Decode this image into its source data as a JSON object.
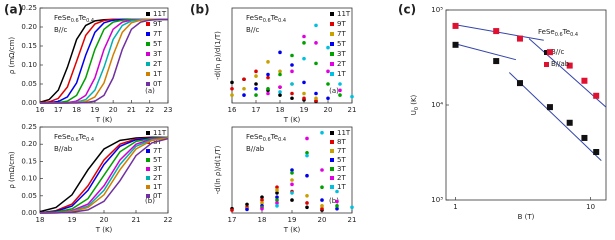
{
  "panel_labels": [
    "(a)",
    "(b)",
    "(c)"
  ],
  "chart_data": [
    {
      "type": "line",
      "title_parts": [
        "FeSe",
        "0.6",
        "Te",
        "0.4"
      ],
      "annotations": [
        "B//c",
        "(a)"
      ],
      "xlabel": "T (K)",
      "ylabel": "ρ (mΩ/cm)",
      "x": [
        16,
        16.5,
        17,
        17.5,
        18,
        18.5,
        19,
        19.5,
        20,
        20.5,
        21,
        21.5,
        22,
        22.5,
        23
      ],
      "xlim": [
        16,
        23
      ],
      "xticks": [
        16,
        17,
        18,
        19,
        20,
        21,
        22,
        23
      ],
      "ylim": [
        0,
        0.25
      ],
      "yticks": [
        {
          "value": 0,
          "label": "0.00"
        },
        {
          "value": 0.05,
          "label": "0.05"
        },
        {
          "value": 0.1,
          "label": "0.10"
        },
        {
          "value": 0.15,
          "label": "0.15"
        },
        {
          "value": 0.2,
          "label": "0.20"
        },
        {
          "value": 0.25,
          "label": "0.25"
        }
      ],
      "legend": "right",
      "series": [
        {
          "name": "11T",
          "color": "#000000",
          "values": [
            0.002,
            0.009,
            0.034,
            0.094,
            0.167,
            0.204,
            0.216,
            0.219,
            0.22,
            0.22,
            0.22,
            0.22,
            0.22,
            0.22,
            0.22
          ]
        },
        {
          "name": "9T",
          "color": "#e00000",
          "values": [
            0.001,
            0.003,
            0.012,
            0.042,
            0.11,
            0.178,
            0.208,
            0.217,
            0.22,
            0.22,
            0.22,
            0.22,
            0.22,
            0.22,
            0.22
          ]
        },
        {
          "name": "7T",
          "color": "#0000ee",
          "values": [
            0,
            0.001,
            0.004,
            0.016,
            0.053,
            0.126,
            0.186,
            0.211,
            0.218,
            0.22,
            0.22,
            0.22,
            0.22,
            0.22,
            0.22
          ]
        },
        {
          "name": "5T",
          "color": "#00a000",
          "values": [
            0,
            0,
            0.001,
            0.005,
            0.02,
            0.066,
            0.141,
            0.194,
            0.213,
            0.218,
            0.22,
            0.22,
            0.22,
            0.22,
            0.22
          ]
        },
        {
          "name": "3T",
          "color": "#d000d0",
          "values": [
            0,
            0,
            0,
            0.001,
            0.005,
            0.02,
            0.066,
            0.141,
            0.194,
            0.213,
            0.218,
            0.22,
            0.22,
            0.22,
            0.22
          ]
        },
        {
          "name": "2T",
          "color": "#00b0b0",
          "values": [
            0,
            0,
            0,
            0,
            0.002,
            0.009,
            0.034,
            0.094,
            0.167,
            0.204,
            0.216,
            0.219,
            0.22,
            0.22,
            0.22
          ]
        },
        {
          "name": "1T",
          "color": "#d08000",
          "values": [
            0,
            0,
            0,
            0,
            0.001,
            0.004,
            0.016,
            0.053,
            0.126,
            0.186,
            0.211,
            0.218,
            0.22,
            0.22,
            0.22
          ]
        },
        {
          "name": "0T",
          "color": "#7030a0",
          "values": [
            0,
            0,
            0,
            0,
            0,
            0.001,
            0.005,
            0.02,
            0.066,
            0.141,
            0.194,
            0.213,
            0.218,
            0.22,
            0.22
          ]
        }
      ]
    },
    {
      "type": "line",
      "title_parts": [
        "FeSe",
        "0.6",
        "Te",
        "0.4"
      ],
      "annotations": [
        "B//ab",
        "(b)"
      ],
      "xlabel": "T (K)",
      "ylabel": "ρ (mΩ/cm)",
      "x": [
        18,
        18.5,
        19,
        19.5,
        20,
        20.5,
        21,
        21.5,
        22
      ],
      "xlim": [
        18,
        22
      ],
      "xticks": [
        18,
        19,
        20,
        21,
        22
      ],
      "ylim": [
        0,
        0.25
      ],
      "yticks": [
        {
          "value": 0,
          "label": "0.00"
        },
        {
          "value": 0.05,
          "label": "0.05"
        },
        {
          "value": 0.1,
          "label": "0.10"
        },
        {
          "value": 0.15,
          "label": "0.15"
        },
        {
          "value": 0.2,
          "label": "0.20"
        },
        {
          "value": 0.25,
          "label": "0.25"
        }
      ],
      "legend": "right",
      "series": [
        {
          "name": "11T",
          "color": "#000000",
          "values": [
            0.004,
            0.016,
            0.053,
            0.126,
            0.186,
            0.211,
            0.218,
            0.22,
            0.22
          ]
        },
        {
          "name": "8T",
          "color": "#e00000",
          "values": [
            0.001,
            0.007,
            0.026,
            0.079,
            0.154,
            0.2,
            0.215,
            0.219,
            0.22
          ]
        },
        {
          "name": "7T",
          "color": "#0000ee",
          "values": [
            0.001,
            0.005,
            0.02,
            0.066,
            0.141,
            0.194,
            0.213,
            0.218,
            0.22
          ]
        },
        {
          "name": "5T",
          "color": "#00a000",
          "values": [
            0.001,
            0.003,
            0.012,
            0.042,
            0.11,
            0.178,
            0.208,
            0.217,
            0.22
          ]
        },
        {
          "name": "3T",
          "color": "#d000d0",
          "values": [
            0,
            0.001,
            0.007,
            0.026,
            0.079,
            0.154,
            0.2,
            0.215,
            0.219
          ]
        },
        {
          "name": "2T",
          "color": "#00b0b0",
          "values": [
            0,
            0.001,
            0.005,
            0.02,
            0.066,
            0.141,
            0.194,
            0.213,
            0.218
          ]
        },
        {
          "name": "1T",
          "color": "#d08000",
          "values": [
            0,
            0.001,
            0.004,
            0.016,
            0.053,
            0.126,
            0.186,
            0.211,
            0.218
          ]
        },
        {
          "name": "0T",
          "color": "#7030a0",
          "values": [
            0,
            0,
            0.002,
            0.009,
            0.034,
            0.094,
            0.167,
            0.204,
            0.216
          ]
        }
      ]
    },
    {
      "type": "scatter",
      "title_parts": [
        "FeSe",
        "0.6",
        "Te",
        "0.4"
      ],
      "annotations": [
        "B//c",
        "(a)"
      ],
      "xlabel": "T (K)",
      "ylabel": "-d(ln ρ)/d(1/T)",
      "x": [
        16,
        16.5,
        17,
        17.5,
        18,
        18.5,
        19,
        19.5,
        20,
        20.5,
        21
      ],
      "xlim": [
        16,
        21
      ],
      "xticks": [
        16,
        17,
        18,
        19,
        20,
        21
      ],
      "ylim": [
        0,
        6000
      ],
      "legend": "right",
      "series": [
        {
          "name": "11T",
          "color": "#000000",
          "values": [
            1300,
            1500,
            1200,
            800,
            500,
            300,
            200,
            100,
            null,
            null,
            null
          ]
        },
        {
          "name": "9T",
          "color": "#e00000",
          "values": [
            900,
            1500,
            2000,
            1600,
            1000,
            600,
            300,
            150,
            null,
            null,
            null
          ]
        },
        {
          "name": "7T",
          "color": "#c8a000",
          "values": [
            500,
            900,
            1700,
            2600,
            2000,
            1200,
            600,
            300,
            null,
            null,
            null
          ]
        },
        {
          "name": "5T",
          "color": "#0000ee",
          "values": [
            null,
            500,
            900,
            1800,
            3200,
            2400,
            1300,
            600,
            300,
            null,
            null
          ]
        },
        {
          "name": "3T",
          "color": "#00a000",
          "values": [
            null,
            null,
            500,
            900,
            1800,
            3000,
            3800,
            2500,
            1200,
            500,
            null
          ]
        },
        {
          "name": "2T",
          "color": "#e000e0",
          "values": [
            null,
            null,
            null,
            600,
            1000,
            2000,
            4200,
            3800,
            2000,
            800,
            null
          ]
        },
        {
          "name": "1T",
          "color": "#00c0e0",
          "values": [
            null,
            null,
            null,
            null,
            700,
            1200,
            2800,
            4900,
            3500,
            1200,
            400
          ]
        }
      ]
    },
    {
      "type": "scatter",
      "title_parts": [
        "FeSe",
        "0.6",
        "Te",
        "0.4"
      ],
      "annotations": [
        "B//ab",
        "(b)"
      ],
      "xlabel": "T (K)",
      "ylabel": "-d(ln ρ)/d(1/T)",
      "x": [
        17,
        17.5,
        18,
        18.5,
        19,
        19.5,
        20,
        20.5,
        21
      ],
      "xlim": [
        17,
        21
      ],
      "xticks": [
        17,
        18,
        19,
        20,
        21
      ],
      "ylim": [
        0,
        6000
      ],
      "legend": "right",
      "series": [
        {
          "name": "11T",
          "color": "#000000",
          "values": [
            300,
            600,
            1100,
            1400,
            900,
            400,
            200,
            null,
            null
          ]
        },
        {
          "name": "8T",
          "color": "#e00000",
          "values": [
            200,
            400,
            900,
            1800,
            1500,
            700,
            300,
            null,
            null
          ]
        },
        {
          "name": "7T",
          "color": "#c8a000",
          "values": [
            null,
            300,
            700,
            1600,
            2300,
            1200,
            500,
            null,
            null
          ]
        },
        {
          "name": "5T",
          "color": "#0000ee",
          "values": [
            null,
            250,
            500,
            1100,
            3000,
            2600,
            900,
            300,
            null
          ]
        },
        {
          "name": "3T",
          "color": "#00a000",
          "values": [
            null,
            null,
            400,
            900,
            2800,
            4200,
            1800,
            500,
            null
          ]
        },
        {
          "name": "2T",
          "color": "#e000e0",
          "values": [
            null,
            null,
            300,
            700,
            2000,
            5200,
            3000,
            800,
            null
          ]
        },
        {
          "name": "1T",
          "color": "#00c0e0",
          "values": [
            null,
            null,
            null,
            500,
            1400,
            4000,
            5600,
            1500,
            400
          ]
        }
      ]
    },
    {
      "type": "loglog",
      "title_parts": [
        "FeSe",
        "0.6",
        "Te",
        "0.4"
      ],
      "xlabel": "B (T)",
      "ylabel_parts": [
        "U",
        "0",
        " (K)"
      ],
      "x": [
        1,
        2,
        3,
        5,
        7,
        9,
        11
      ],
      "xlim": [
        0.85,
        13
      ],
      "xticks": [
        1,
        10
      ],
      "ylim": [
        1000,
        100000
      ],
      "yticks": [
        {
          "value": 1000,
          "label": "10³"
        },
        {
          "value": 10000,
          "label": "10⁴"
        },
        {
          "value": 100000,
          "label": "10⁵"
        }
      ],
      "legend": "right",
      "series": [
        {
          "name": "B//c",
          "color": "#111111",
          "values": [
            43000,
            29000,
            17000,
            9500,
            6500,
            4500,
            3200
          ]
        },
        {
          "name": "B//ab",
          "color": "#e01030",
          "values": [
            68000,
            60000,
            50000,
            36000,
            26000,
            18000,
            12500
          ]
        }
      ],
      "fit_color": "#3344aa",
      "fits": [
        {
          "x": [
            1,
            2.8
          ],
          "values": [
            44000,
            30000
          ]
        },
        {
          "x": [
            2.5,
            12
          ],
          "values": [
            22000,
            2600
          ]
        },
        {
          "x": [
            1,
            4.5
          ],
          "values": [
            70000,
            48000
          ]
        },
        {
          "x": [
            3.5,
            13
          ],
          "values": [
            50000,
            9500
          ]
        }
      ]
    }
  ]
}
